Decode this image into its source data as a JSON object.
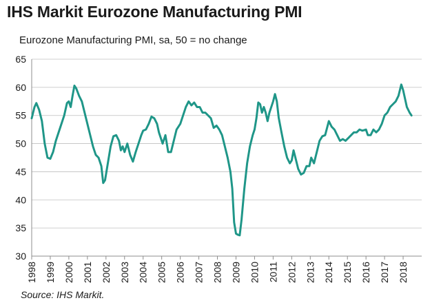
{
  "header": {
    "title": "IHS Markit Eurozone Manufacturing PMI",
    "subtitle": "Eurozone Manufacturing PMI, sa, 50 = no change"
  },
  "footer": {
    "source": "Source: IHS Markit."
  },
  "colors": {
    "series": "#1f9688",
    "axis": "#8c8c8c",
    "grid": "#bfbfbf",
    "text": "#1a1a1a"
  },
  "chart_data": {
    "type": "line",
    "ylim": [
      30,
      65
    ],
    "yticks": [
      30,
      35,
      40,
      45,
      50,
      55,
      60,
      65
    ],
    "xlim": [
      1998,
      2019
    ],
    "xticks": [
      "1998",
      "1999",
      "2000",
      "2001",
      "2002",
      "2003",
      "2004",
      "2005",
      "2006",
      "2007",
      "2008",
      "2009",
      "2010",
      "2011",
      "2012",
      "2013",
      "2014",
      "2015",
      "2016",
      "2017",
      "2018"
    ],
    "grid": true,
    "legend": "none",
    "series": [
      {
        "points": [
          [
            1998.0,
            54.5
          ],
          [
            1998.15,
            56.5
          ],
          [
            1998.25,
            57.2
          ],
          [
            1998.4,
            56.0
          ],
          [
            1998.55,
            54.0
          ],
          [
            1998.7,
            50.0
          ],
          [
            1998.85,
            47.5
          ],
          [
            1999.0,
            47.3
          ],
          [
            1999.15,
            48.5
          ],
          [
            1999.3,
            50.5
          ],
          [
            1999.45,
            52.0
          ],
          [
            1999.6,
            53.5
          ],
          [
            1999.75,
            55.0
          ],
          [
            1999.9,
            57.2
          ],
          [
            2000.0,
            57.5
          ],
          [
            2000.1,
            56.5
          ],
          [
            2000.2,
            58.5
          ],
          [
            2000.3,
            60.3
          ],
          [
            2000.4,
            59.8
          ],
          [
            2000.55,
            58.5
          ],
          [
            2000.7,
            57.5
          ],
          [
            2000.85,
            55.5
          ],
          [
            2001.0,
            53.5
          ],
          [
            2001.15,
            51.5
          ],
          [
            2001.3,
            49.5
          ],
          [
            2001.45,
            48.0
          ],
          [
            2001.6,
            47.5
          ],
          [
            2001.75,
            46.0
          ],
          [
            2001.85,
            43.0
          ],
          [
            2001.95,
            43.5
          ],
          [
            2002.1,
            46.5
          ],
          [
            2002.25,
            49.5
          ],
          [
            2002.4,
            51.3
          ],
          [
            2002.55,
            51.5
          ],
          [
            2002.7,
            50.5
          ],
          [
            2002.8,
            48.8
          ],
          [
            2002.9,
            49.5
          ],
          [
            2003.0,
            48.5
          ],
          [
            2003.15,
            50.0
          ],
          [
            2003.3,
            48.0
          ],
          [
            2003.45,
            46.8
          ],
          [
            2003.6,
            48.5
          ],
          [
            2003.75,
            50.0
          ],
          [
            2003.9,
            51.5
          ],
          [
            2004.0,
            52.3
          ],
          [
            2004.15,
            52.5
          ],
          [
            2004.3,
            53.5
          ],
          [
            2004.45,
            54.8
          ],
          [
            2004.6,
            54.5
          ],
          [
            2004.75,
            53.5
          ],
          [
            2004.85,
            52.0
          ],
          [
            2004.95,
            51.0
          ],
          [
            2005.05,
            50.0
          ],
          [
            2005.2,
            51.5
          ],
          [
            2005.35,
            48.5
          ],
          [
            2005.5,
            48.5
          ],
          [
            2005.65,
            50.5
          ],
          [
            2005.8,
            52.5
          ],
          [
            2006.0,
            53.5
          ],
          [
            2006.15,
            55.0
          ],
          [
            2006.3,
            56.5
          ],
          [
            2006.45,
            57.5
          ],
          [
            2006.6,
            56.8
          ],
          [
            2006.75,
            57.3
          ],
          [
            2006.9,
            56.5
          ],
          [
            2007.05,
            56.5
          ],
          [
            2007.2,
            55.5
          ],
          [
            2007.35,
            55.5
          ],
          [
            2007.5,
            55.0
          ],
          [
            2007.65,
            54.5
          ],
          [
            2007.8,
            52.8
          ],
          [
            2007.95,
            53.2
          ],
          [
            2008.1,
            52.5
          ],
          [
            2008.25,
            51.5
          ],
          [
            2008.4,
            49.5
          ],
          [
            2008.55,
            47.5
          ],
          [
            2008.7,
            45.0
          ],
          [
            2008.8,
            42.0
          ],
          [
            2008.9,
            36.0
          ],
          [
            2009.0,
            34.0
          ],
          [
            2009.1,
            33.8
          ],
          [
            2009.2,
            33.7
          ],
          [
            2009.3,
            36.5
          ],
          [
            2009.45,
            42.0
          ],
          [
            2009.6,
            46.5
          ],
          [
            2009.75,
            49.5
          ],
          [
            2009.9,
            51.5
          ],
          [
            2010.0,
            52.5
          ],
          [
            2010.1,
            54.5
          ],
          [
            2010.2,
            57.3
          ],
          [
            2010.3,
            57.0
          ],
          [
            2010.4,
            55.5
          ],
          [
            2010.5,
            56.5
          ],
          [
            2010.6,
            55.5
          ],
          [
            2010.7,
            54.0
          ],
          [
            2010.8,
            55.5
          ],
          [
            2010.9,
            56.5
          ],
          [
            2011.0,
            57.5
          ],
          [
            2011.1,
            58.8
          ],
          [
            2011.2,
            57.5
          ],
          [
            2011.3,
            54.6
          ],
          [
            2011.45,
            52.0
          ],
          [
            2011.6,
            49.5
          ],
          [
            2011.75,
            47.5
          ],
          [
            2011.9,
            46.5
          ],
          [
            2012.0,
            47.0
          ],
          [
            2012.1,
            48.8
          ],
          [
            2012.2,
            47.5
          ],
          [
            2012.35,
            45.5
          ],
          [
            2012.5,
            44.5
          ],
          [
            2012.65,
            44.8
          ],
          [
            2012.8,
            46.0
          ],
          [
            2012.95,
            46.0
          ],
          [
            2013.05,
            47.5
          ],
          [
            2013.2,
            46.5
          ],
          [
            2013.35,
            48.5
          ],
          [
            2013.5,
            50.5
          ],
          [
            2013.65,
            51.3
          ],
          [
            2013.8,
            51.5
          ],
          [
            2014.0,
            54.0
          ],
          [
            2014.15,
            53.0
          ],
          [
            2014.3,
            52.5
          ],
          [
            2014.45,
            51.5
          ],
          [
            2014.6,
            50.5
          ],
          [
            2014.75,
            50.8
          ],
          [
            2014.9,
            50.5
          ],
          [
            2015.05,
            51.0
          ],
          [
            2015.2,
            51.5
          ],
          [
            2015.35,
            52.0
          ],
          [
            2015.5,
            52.0
          ],
          [
            2015.65,
            52.5
          ],
          [
            2015.8,
            52.3
          ],
          [
            2016.0,
            52.5
          ],
          [
            2016.1,
            51.5
          ],
          [
            2016.25,
            51.5
          ],
          [
            2016.4,
            52.5
          ],
          [
            2016.55,
            52.0
          ],
          [
            2016.7,
            52.5
          ],
          [
            2016.85,
            53.5
          ],
          [
            2017.0,
            55.0
          ],
          [
            2017.15,
            55.5
          ],
          [
            2017.3,
            56.5
          ],
          [
            2017.45,
            57.0
          ],
          [
            2017.6,
            57.5
          ],
          [
            2017.75,
            58.5
          ],
          [
            2017.9,
            60.5
          ],
          [
            2018.0,
            59.5
          ],
          [
            2018.1,
            58.0
          ],
          [
            2018.2,
            56.5
          ],
          [
            2018.35,
            55.5
          ],
          [
            2018.45,
            55.0
          ]
        ]
      }
    ]
  }
}
